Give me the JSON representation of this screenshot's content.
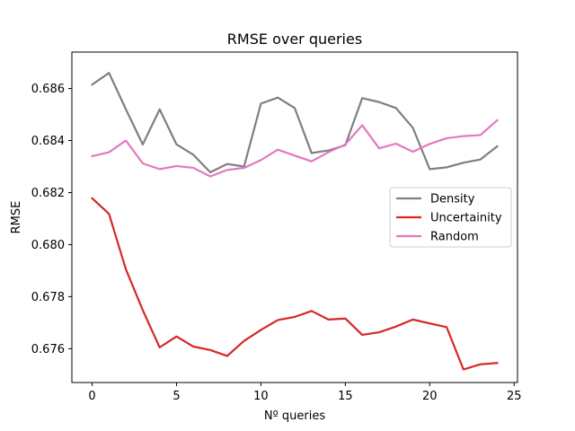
{
  "chart_data": {
    "type": "line",
    "title": "RMSE over queries",
    "xlabel": "Nº queries",
    "ylabel": "RMSE",
    "xlim": [
      -1.2,
      25.2
    ],
    "ylim": [
      0.6747,
      0.6874
    ],
    "xticks": [
      0,
      5,
      10,
      15,
      20,
      25
    ],
    "yticks": [
      0.676,
      0.678,
      0.68,
      0.682,
      0.684,
      0.686
    ],
    "ytick_labels": [
      "0.676",
      "0.678",
      "0.680",
      "0.682",
      "0.684",
      "0.686"
    ],
    "grid": false,
    "legend_position": "center-right",
    "x": [
      0,
      1,
      2,
      3,
      4,
      5,
      6,
      7,
      8,
      9,
      10,
      11,
      12,
      13,
      14,
      15,
      16,
      17,
      18,
      19,
      20,
      21,
      22,
      23,
      24
    ],
    "series": [
      {
        "name": "Density",
        "color": "#7f7f7f",
        "values": [
          0.68615,
          0.6866,
          0.6852,
          0.68385,
          0.6852,
          0.68385,
          0.68345,
          0.68278,
          0.6831,
          0.683,
          0.68542,
          0.68565,
          0.68525,
          0.68352,
          0.68362,
          0.68382,
          0.68563,
          0.68548,
          0.68525,
          0.68449,
          0.6829,
          0.68297,
          0.68315,
          0.68327,
          0.68378
        ]
      },
      {
        "name": "Uncertainity",
        "color": "#d62728",
        "values": [
          0.68178,
          0.68118,
          0.67905,
          0.67748,
          0.67605,
          0.67647,
          0.67608,
          0.67595,
          0.67572,
          0.6763,
          0.67672,
          0.6771,
          0.67722,
          0.67745,
          0.67712,
          0.67716,
          0.67653,
          0.67663,
          0.67685,
          0.67712,
          0.67697,
          0.67683,
          0.6752,
          0.6754,
          0.67545
        ]
      },
      {
        "name": "Random",
        "color": "#e377c2",
        "values": [
          0.6834,
          0.68355,
          0.684,
          0.68312,
          0.6829,
          0.68302,
          0.68295,
          0.68262,
          0.68287,
          0.68295,
          0.68325,
          0.68365,
          0.68342,
          0.6832,
          0.68355,
          0.68385,
          0.68459,
          0.6837,
          0.68388,
          0.68357,
          0.68387,
          0.68409,
          0.68417,
          0.68421,
          0.68478
        ]
      }
    ]
  }
}
